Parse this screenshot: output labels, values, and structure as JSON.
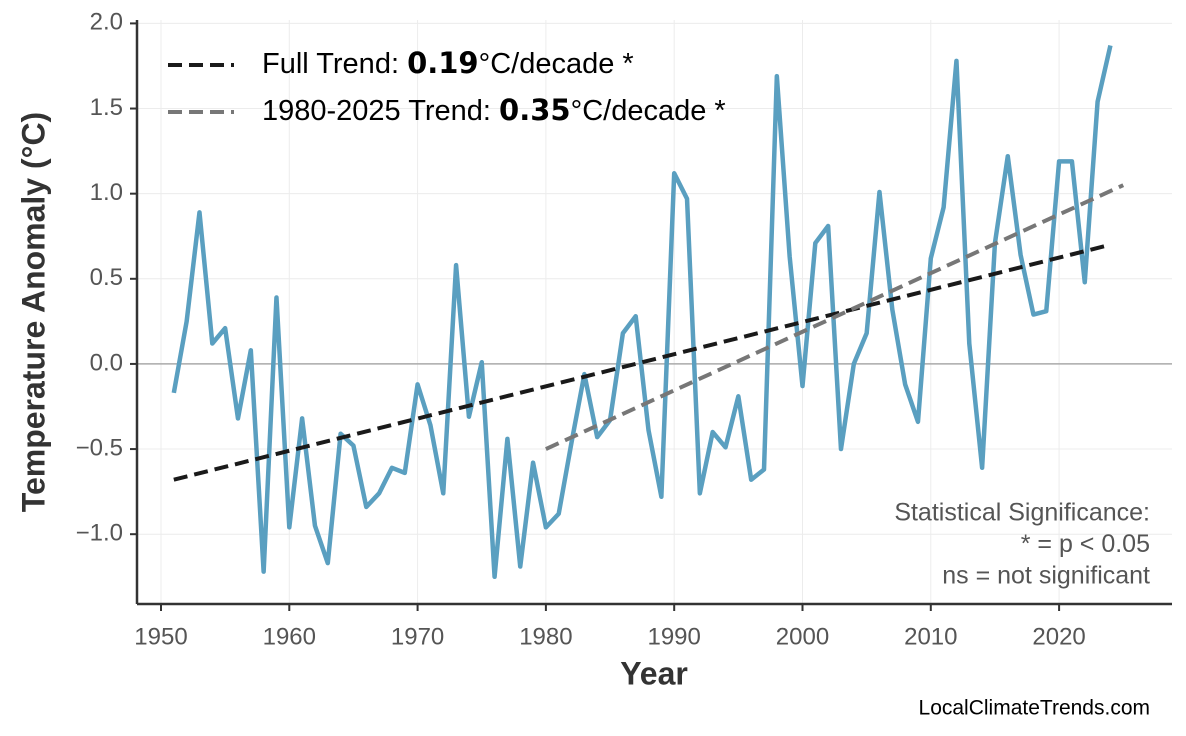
{
  "chart_data": {
    "type": "line",
    "y_label": "Temperature Anomaly (°C)",
    "x_label": "Year",
    "xlim": [
      1948.13,
      2028.8
    ],
    "ylim": [
      -1.41,
      2.02
    ],
    "xticks": [
      1950,
      1960,
      1970,
      1980,
      1990,
      2000,
      2010,
      2020
    ],
    "yticks": [
      {
        "value": -1,
        "label": "−1.0"
      },
      {
        "value": -0.5,
        "label": "−0.5"
      },
      {
        "value": 0,
        "label": "0.0"
      },
      {
        "value": 0.5,
        "label": "0.5"
      },
      {
        "value": 1,
        "label": "1.0"
      },
      {
        "value": 1.5,
        "label": "1.5"
      },
      {
        "value": 2,
        "label": "2.0"
      }
    ],
    "grid": true,
    "zero_line": true,
    "legend": "upper left",
    "series": [
      {
        "color": "#5a9fc0",
        "dashed": false,
        "x": [
          1951,
          1952,
          1953,
          1954,
          1955,
          1956,
          1957,
          1958,
          1959,
          1960,
          1961,
          1962,
          1963,
          1964,
          1965,
          1966,
          1967,
          1968,
          1969,
          1970,
          1971,
          1972,
          1973,
          1974,
          1975,
          1976,
          1977,
          1978,
          1979,
          1980,
          1981,
          1982,
          1983,
          1984,
          1985,
          1986,
          1987,
          1988,
          1989,
          1990,
          1991,
          1992,
          1993,
          1994,
          1995,
          1996,
          1997,
          1998,
          1999,
          2000,
          2001,
          2002,
          2003,
          2004,
          2005,
          2006,
          2007,
          2008,
          2009,
          2010,
          2011,
          2012,
          2013,
          2014,
          2015,
          2016,
          2017,
          2018,
          2019,
          2020,
          2021,
          2022,
          2023,
          2024
        ],
        "values": [
          -0.17,
          0.25,
          0.89,
          0.12,
          0.21,
          -0.32,
          0.08,
          -1.22,
          0.39,
          -0.96,
          -0.32,
          -0.95,
          -1.17,
          -0.41,
          -0.48,
          -0.84,
          -0.76,
          -0.61,
          -0.64,
          -0.12,
          -0.36,
          -0.76,
          0.58,
          -0.31,
          0.01,
          -1.25,
          -0.44,
          -1.19,
          -0.58,
          -0.96,
          -0.88,
          -0.46,
          -0.06,
          -0.43,
          -0.33,
          0.18,
          0.28,
          -0.39,
          -0.78,
          1.12,
          0.97,
          -0.76,
          -0.4,
          -0.49,
          -0.19,
          -0.68,
          -0.62,
          1.69,
          0.63,
          -0.13,
          0.71,
          0.81,
          -0.5,
          0.0,
          0.18,
          1.01,
          0.32,
          -0.12,
          -0.34,
          0.62,
          0.92,
          1.78,
          0.12,
          -0.61,
          0.71,
          1.22,
          0.64,
          0.29,
          0.31,
          1.19,
          1.19,
          0.48,
          1.54,
          1.87
        ]
      },
      {
        "name": "Full Trend:",
        "slope": 0.19,
        "unit": "°C/decade *",
        "color": "#1a1a1a",
        "dashed": true,
        "x": [
          1951,
          2024
        ],
        "values": [
          -0.68,
          0.7
        ]
      },
      {
        "name": "1980-2025 Trend:",
        "slope": 0.35,
        "unit": "°C/decade *",
        "color": "#777777",
        "dashed": true,
        "x": [
          1980,
          2025
        ],
        "values": [
          -0.5,
          1.05
        ]
      }
    ],
    "annotation": [
      "Statistical Significance:",
      "* = p < 0.05",
      "ns = not significant"
    ],
    "source": "LocalClimateTrends.com"
  }
}
